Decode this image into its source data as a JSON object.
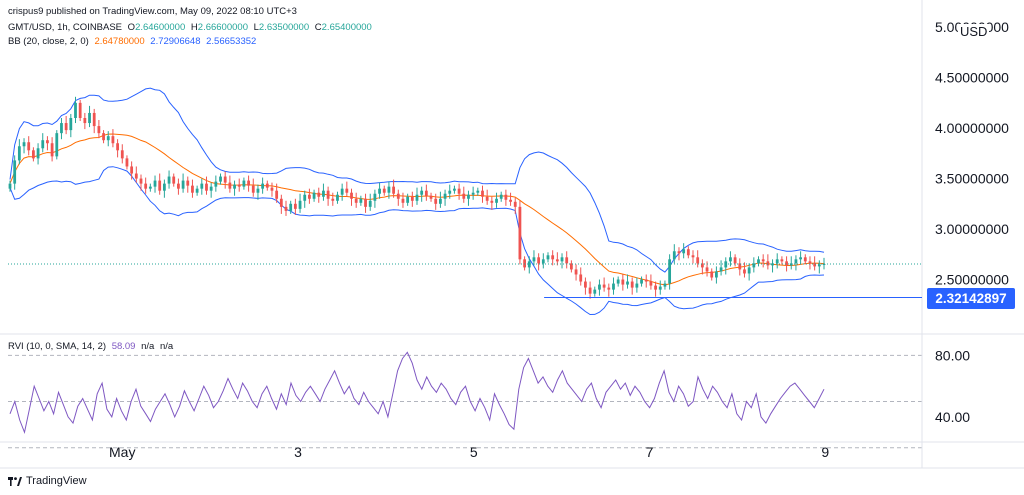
{
  "header": {
    "published": "crispus9 published on TradingView.com, May 09, 2022 08:10 UTC+3",
    "symbol": "GMT/USD, 1h, COINBASE",
    "ohlc": {
      "o_label": "O",
      "o": "2.64600000",
      "h_label": "H",
      "h": "2.66600000",
      "l_label": "L",
      "l": "2.63500000",
      "c_label": "C",
      "c": "2.65400000"
    },
    "bb": {
      "label": "BB (20, close, 2, 0)",
      "basis": "2.64780000",
      "upper": "2.72906648",
      "lower": "2.56653352"
    },
    "rvi": {
      "label": "RVI (10, 0, SMA, 14, 2)",
      "value": "58.09",
      "na1": "n/a",
      "na2": "n/a"
    }
  },
  "currency": "USD",
  "price_tag": "2.32142897",
  "logo": "TradingView",
  "colors": {
    "up": "#26a69a",
    "down": "#ef5350",
    "bb_band": "#2962ff",
    "bb_basis": "#ff6d00",
    "rvi": "#7e57c2",
    "price_tag": "#2962ff",
    "grid_dash": "#b2b5be",
    "last_price_dotted": "#26a69a"
  },
  "chart_data": [
    {
      "type": "candlestick",
      "title": "GMT/USD, 1h, COINBASE",
      "yticks": [
        "2.50000000",
        "3.00000000",
        "3.50000000",
        "4.00000000",
        "4.50000000",
        "5.00000000"
      ],
      "ytick_values": [
        2.5,
        3.0,
        3.5,
        4.0,
        4.5,
        5.0
      ],
      "ylim": [
        2.0,
        5.15
      ],
      "xticks": [
        "May",
        "3",
        "5",
        "7",
        "9"
      ],
      "x_range_days": [
        -0.3,
        10.1
      ],
      "xtick_days": [
        1,
        3,
        5,
        7,
        9
      ],
      "horizontal_line": 2.32142897,
      "horizontal_line_start_day": 5.8,
      "last_price": 2.654,
      "candles_close": [
        3.45,
        3.68,
        3.82,
        3.86,
        3.78,
        3.7,
        3.8,
        3.88,
        3.85,
        3.72,
        3.95,
        4.05,
        3.98,
        4.1,
        4.25,
        4.1,
        4.05,
        4.15,
        4.02,
        3.95,
        3.88,
        3.92,
        3.85,
        3.78,
        3.7,
        3.62,
        3.55,
        3.5,
        3.45,
        3.4,
        3.42,
        3.48,
        3.38,
        3.45,
        3.52,
        3.45,
        3.4,
        3.48,
        3.43,
        3.36,
        3.4,
        3.45,
        3.38,
        3.42,
        3.47,
        3.52,
        3.46,
        3.4,
        3.44,
        3.42,
        3.48,
        3.43,
        3.36,
        3.4,
        3.45,
        3.41,
        3.38,
        3.3,
        3.22,
        3.18,
        3.25,
        3.2,
        3.28,
        3.34,
        3.3,
        3.36,
        3.32,
        3.38,
        3.3,
        3.28,
        3.34,
        3.4,
        3.36,
        3.3,
        3.26,
        3.3,
        3.22,
        3.28,
        3.35,
        3.4,
        3.36,
        3.42,
        3.35,
        3.3,
        3.26,
        3.32,
        3.28,
        3.34,
        3.38,
        3.33,
        3.3,
        3.25,
        3.3,
        3.35,
        3.38,
        3.4,
        3.35,
        3.3,
        3.34,
        3.36,
        3.38,
        3.32,
        3.28,
        3.26,
        3.3,
        3.34,
        3.29,
        3.27,
        3.22,
        2.7,
        2.62,
        2.68,
        2.72,
        2.66,
        2.7,
        2.74,
        2.7,
        2.68,
        2.72,
        2.66,
        2.6,
        2.55,
        2.48,
        2.42,
        2.36,
        2.4,
        2.45,
        2.42,
        2.4,
        2.46,
        2.5,
        2.45,
        2.48,
        2.42,
        2.46,
        2.5,
        2.48,
        2.44,
        2.4,
        2.43,
        2.46,
        2.7,
        2.78,
        2.76,
        2.8,
        2.74,
        2.72,
        2.66,
        2.62,
        2.58,
        2.52,
        2.58,
        2.62,
        2.68,
        2.72,
        2.66,
        2.6,
        2.56,
        2.62,
        2.66,
        2.7,
        2.68,
        2.64,
        2.66,
        2.7,
        2.68,
        2.64,
        2.66,
        2.7,
        2.72,
        2.68,
        2.66,
        2.63,
        2.65,
        2.654
      ]
    },
    {
      "type": "line",
      "title": "RVI (10, 0, SMA, 14, 2)",
      "yticks": [
        "40.00",
        "80.00"
      ],
      "ytick_values": [
        40,
        80
      ],
      "ylim": [
        25,
        90
      ],
      "bands": [
        80,
        50,
        20
      ],
      "series": [
        {
          "name": "RVI",
          "values": [
            42,
            50,
            38,
            30,
            45,
            60,
            52,
            44,
            50,
            42,
            56,
            48,
            40,
            36,
            47,
            52,
            45,
            38,
            55,
            62,
            45,
            40,
            52,
            44,
            38,
            50,
            58,
            47,
            42,
            37,
            45,
            50,
            55,
            48,
            40,
            47,
            57,
            50,
            44,
            52,
            60,
            54,
            46,
            50,
            57,
            65,
            58,
            52,
            62,
            57,
            50,
            46,
            55,
            60,
            52,
            45,
            55,
            48,
            62,
            54,
            50,
            56,
            60,
            55,
            50,
            58,
            64,
            70,
            62,
            55,
            60,
            52,
            48,
            56,
            50,
            46,
            42,
            50,
            40,
            55,
            70,
            78,
            82,
            75,
            64,
            58,
            66,
            60,
            56,
            62,
            58,
            52,
            48,
            56,
            60,
            50,
            44,
            52,
            46,
            38,
            55,
            48,
            42,
            35,
            32,
            58,
            72,
            78,
            70,
            62,
            66,
            60,
            56,
            64,
            70,
            62,
            58,
            54,
            50,
            58,
            62,
            52,
            46,
            56,
            60,
            64,
            58,
            62,
            54,
            60,
            56,
            50,
            46,
            52,
            62,
            70,
            56,
            50,
            60,
            55,
            47,
            50,
            66,
            58,
            52,
            60,
            56,
            50,
            46,
            55,
            42,
            38,
            50,
            46,
            55,
            40,
            36,
            42,
            47,
            52,
            56,
            60,
            62,
            58,
            54,
            50,
            46,
            52,
            58
          ]
        }
      ]
    }
  ]
}
